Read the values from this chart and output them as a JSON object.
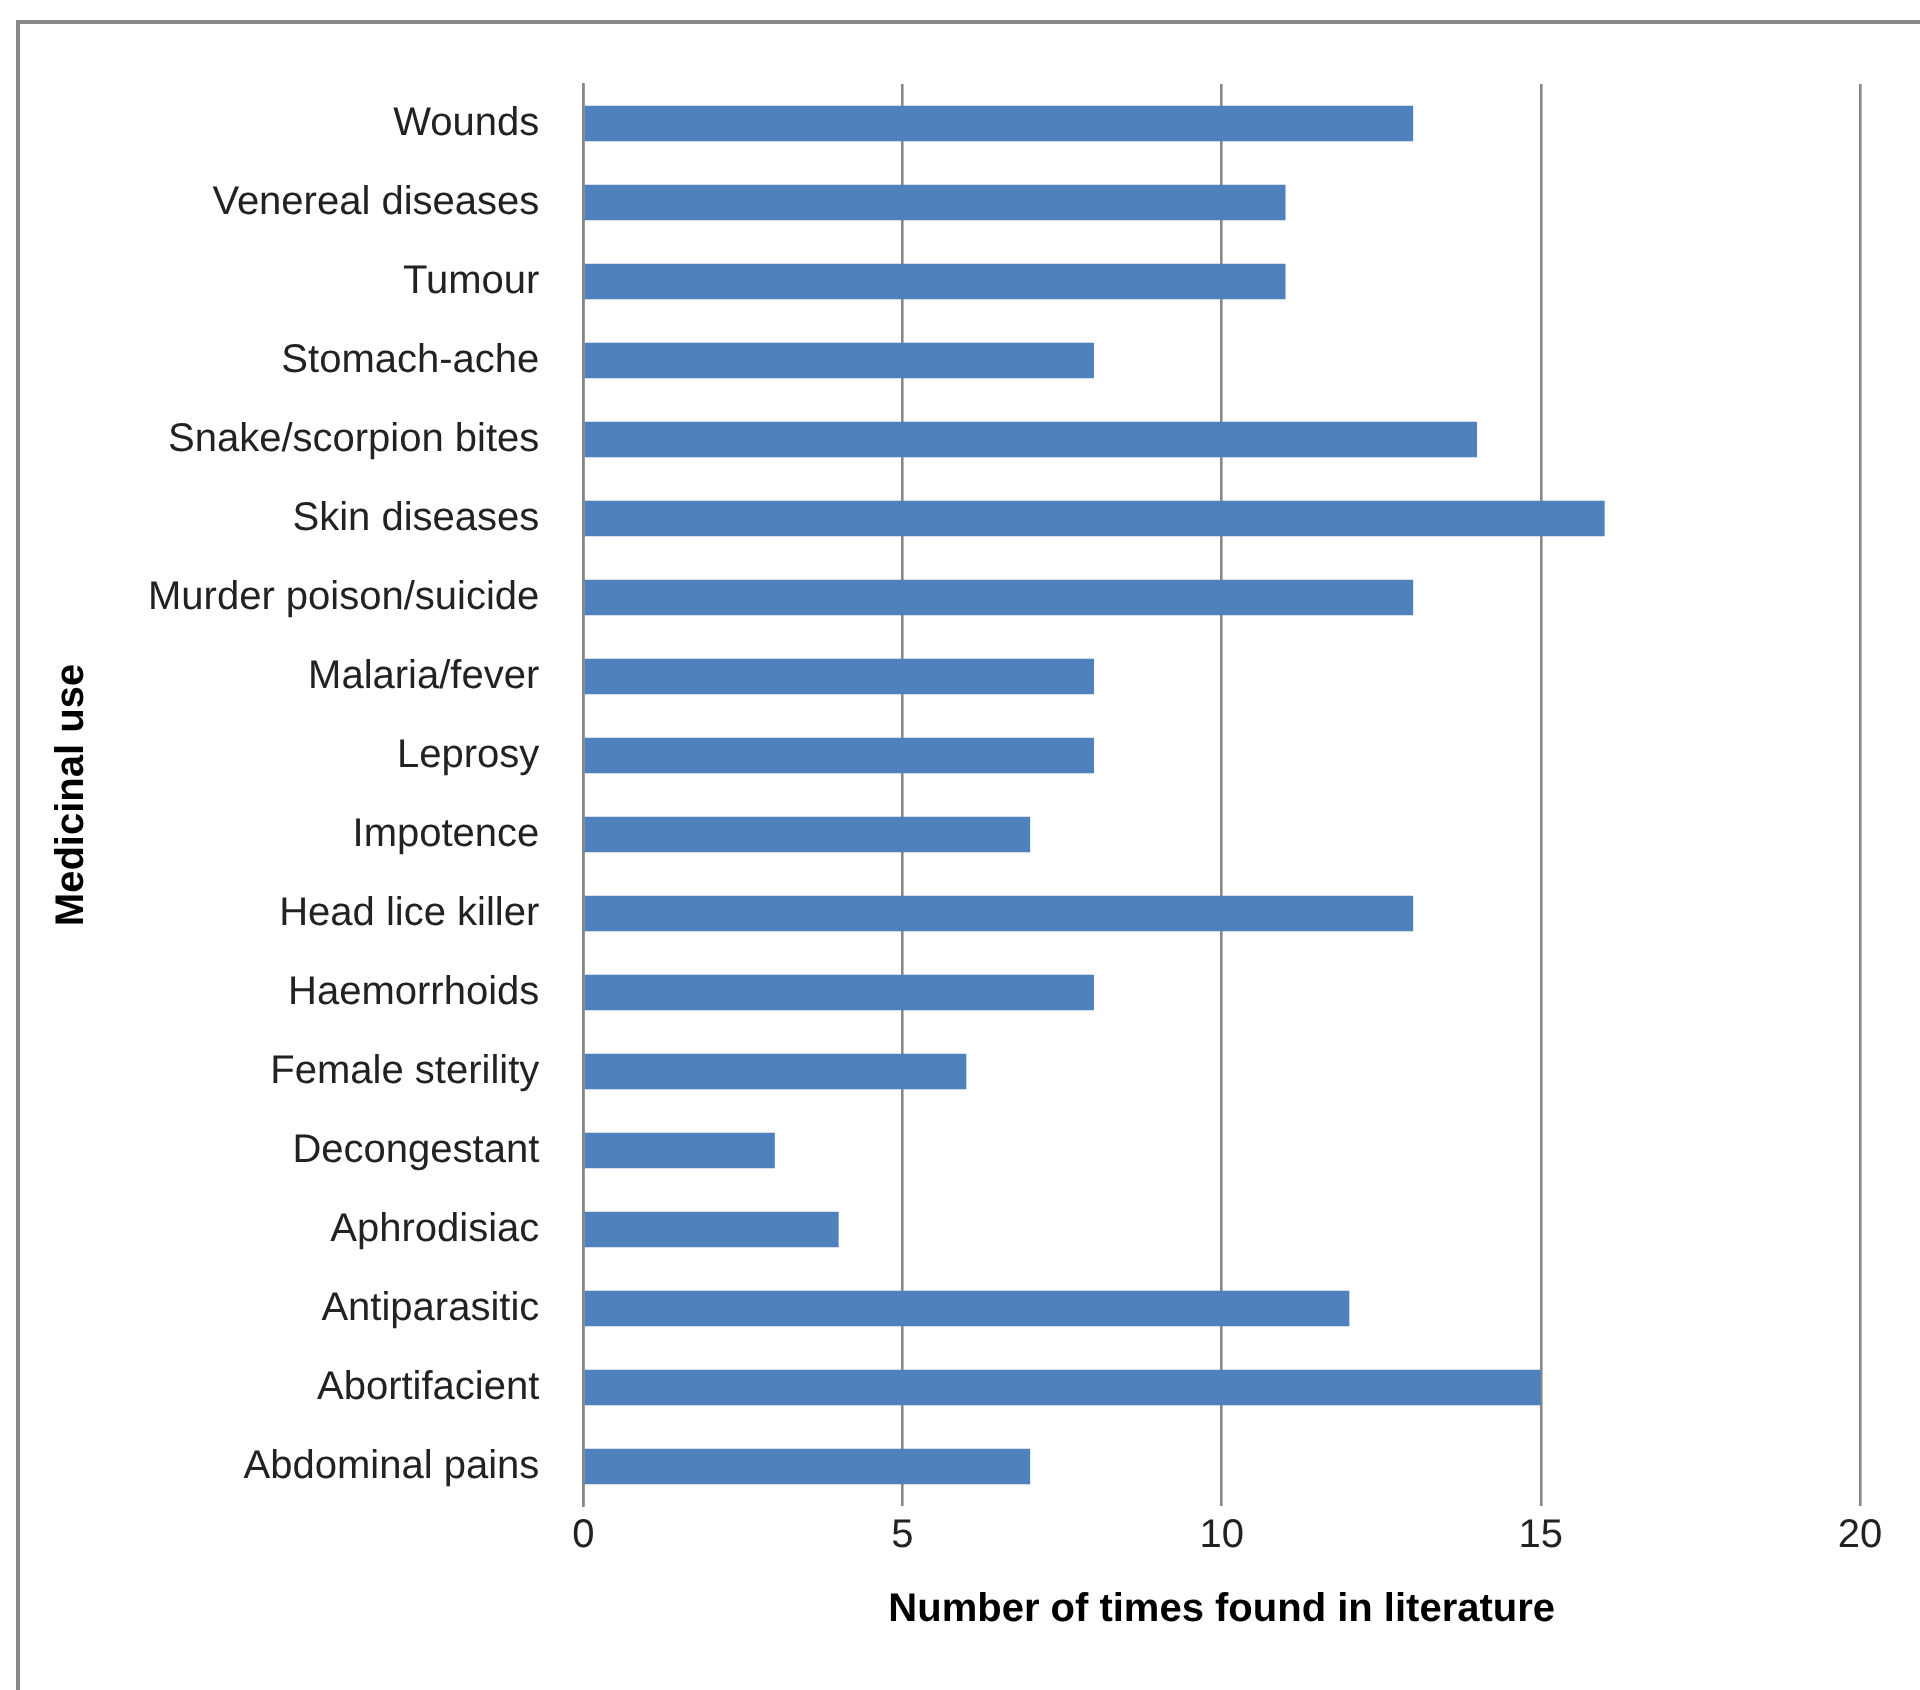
{
  "chart_data": {
    "type": "bar",
    "orientation": "horizontal",
    "xlabel": "Number of times found in literature",
    "ylabel": "Medicinal use",
    "categories": [
      "Wounds",
      "Venereal diseases",
      "Tumour",
      "Stomach-ache",
      "Snake/scorpion bites",
      "Skin diseases",
      "Murder poison/suicide",
      "Malaria/fever",
      "Leprosy",
      "Impotence",
      "Head lice killer",
      "Haemorrhoids",
      "Female sterility",
      "Decongestant",
      "Aphrodisiac",
      "Antiparasitic",
      "Abortifacient",
      "Abdominal pains"
    ],
    "values": [
      13,
      11,
      11,
      8,
      14,
      16,
      13,
      8,
      8,
      7,
      13,
      8,
      6,
      3,
      4,
      12,
      15,
      7
    ],
    "color": "#4f81bd",
    "xlim": [
      0,
      20
    ],
    "xticks": [
      0,
      5,
      10,
      15,
      20
    ],
    "grid": "x",
    "legend": false
  }
}
